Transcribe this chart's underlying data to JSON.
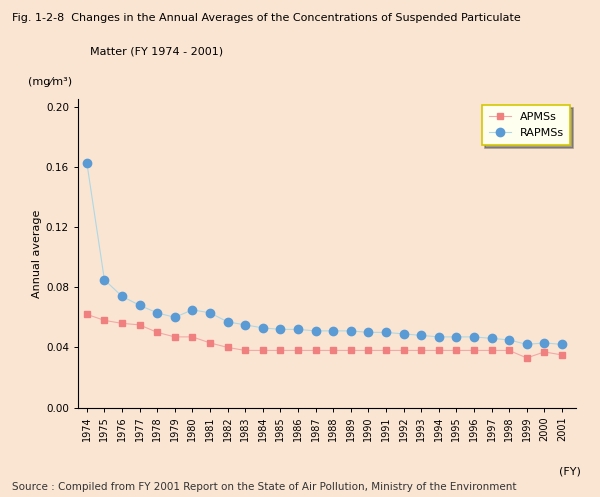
{
  "title_line1": "Fig. 1-2-8  Changes in the Annual Averages of the Concentrations of Suspended Particulate",
  "title_line2": "Matter (FY 1974 - 2001)",
  "ylabel": "Annual average",
  "ylabel_unit": "(mg⁄m³)",
  "xlabel_fy": "(FY)",
  "source": "Source : Compiled from FY 2001 Report on the State of Air Pollution, Ministry of the Environment",
  "years": [
    1974,
    1975,
    1976,
    1977,
    1978,
    1979,
    1980,
    1981,
    1982,
    1983,
    1984,
    1985,
    1986,
    1987,
    1988,
    1989,
    1990,
    1991,
    1992,
    1993,
    1994,
    1995,
    1996,
    1997,
    1998,
    1999,
    2000,
    2001
  ],
  "APMSs": [
    0.062,
    0.058,
    0.056,
    0.055,
    0.05,
    0.047,
    0.047,
    0.043,
    0.04,
    0.038,
    0.038,
    0.038,
    0.038,
    0.038,
    0.038,
    0.038,
    0.038,
    0.038,
    0.038,
    0.038,
    0.038,
    0.038,
    0.038,
    0.038,
    0.038,
    0.033,
    0.037,
    0.035
  ],
  "RAPMSs": [
    0.163,
    0.085,
    0.074,
    0.068,
    0.063,
    0.06,
    0.065,
    0.063,
    0.057,
    0.055,
    0.053,
    0.052,
    0.052,
    0.051,
    0.051,
    0.051,
    0.05,
    0.05,
    0.049,
    0.048,
    0.047,
    0.047,
    0.047,
    0.046,
    0.045,
    0.042,
    0.043,
    0.042
  ],
  "apmss_marker_color": "#f08080",
  "rapmss_marker_color": "#5b9bd5",
  "apmss_line_color": "#f4a7a7",
  "rapmss_line_color": "#add8e6",
  "background_color": "#fae5d3",
  "title_bg_color": "#ffffff",
  "legend_bg_color": "#fffff0",
  "legend_border_color": "#d4c800",
  "legend_shadow_color": "#aaaaaa",
  "ylim": [
    0.0,
    0.205
  ],
  "yticks": [
    0.0,
    0.04,
    0.08,
    0.12,
    0.16,
    0.2
  ]
}
